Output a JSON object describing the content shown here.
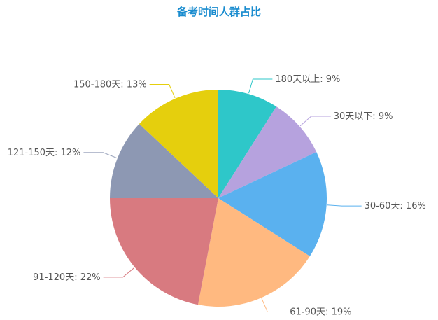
{
  "chart_data": {
    "type": "pie",
    "title": "备考时间人群占比",
    "title_color": "#1a8ccf",
    "label_color": "#555555",
    "label_separator": ": ",
    "value_suffix": "%",
    "start_angle_deg": 0,
    "direction": "clockwise",
    "slices": [
      {
        "name": "180天以上",
        "value": 9,
        "color": "#2ec7c9"
      },
      {
        "name": "30天以下",
        "value": 9,
        "color": "#b6a2de"
      },
      {
        "name": "30-60天",
        "value": 16,
        "color": "#5ab1ef"
      },
      {
        "name": "61-90天",
        "value": 19,
        "color": "#ffb980"
      },
      {
        "name": "91-120天",
        "value": 22,
        "color": "#d87a80"
      },
      {
        "name": "121-150天",
        "value": 12,
        "color": "#8d98b3"
      },
      {
        "name": "150-180天",
        "value": 13,
        "color": "#e5cf0d"
      }
    ]
  }
}
